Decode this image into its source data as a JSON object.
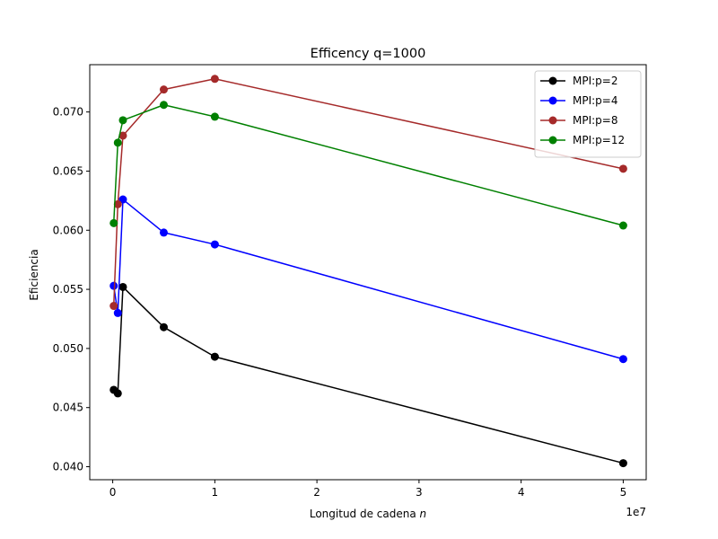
{
  "chart_data": {
    "type": "line",
    "title": "Efficency q=1000",
    "xlabel": "Longitud de cadena",
    "xlabel_var": "n",
    "ylabel": "Eficiencia",
    "x_offset_label": "1e7",
    "xlim": [
      -2250000,
      52250000
    ],
    "ylim": [
      0.0389,
      0.074
    ],
    "xticks": [
      0,
      10000000,
      20000000,
      30000000,
      40000000,
      50000000
    ],
    "xtick_labels": [
      "0",
      "1",
      "2",
      "3",
      "4",
      "5"
    ],
    "yticks": [
      0.04,
      0.045,
      0.05,
      0.055,
      0.06,
      0.065,
      0.07
    ],
    "ytick_labels": [
      "0.040",
      "0.045",
      "0.050",
      "0.055",
      "0.060",
      "0.065",
      "0.070"
    ],
    "grid": false,
    "legend_position": "top-right",
    "x": [
      100000,
      500000,
      1000000,
      5000000,
      10000000,
      50000000
    ],
    "series": [
      {
        "name": "MPI:p=2",
        "color": "#000000",
        "values": [
          0.0465,
          0.0462,
          0.0552,
          0.0518,
          0.0493,
          0.0403
        ]
      },
      {
        "name": "MPI:p=4",
        "color": "#0000ff",
        "values": [
          0.0553,
          0.053,
          0.0626,
          0.0598,
          0.0588,
          0.0491
        ]
      },
      {
        "name": "MPI:p=8",
        "color": "#a52a2a",
        "values": [
          0.0536,
          0.0622,
          0.068,
          0.0719,
          0.0728,
          0.0652
        ]
      },
      {
        "name": "MPI:p=12",
        "color": "#008000",
        "values": [
          0.0606,
          0.0674,
          0.0693,
          0.0706,
          0.0696,
          0.0604
        ]
      }
    ]
  }
}
